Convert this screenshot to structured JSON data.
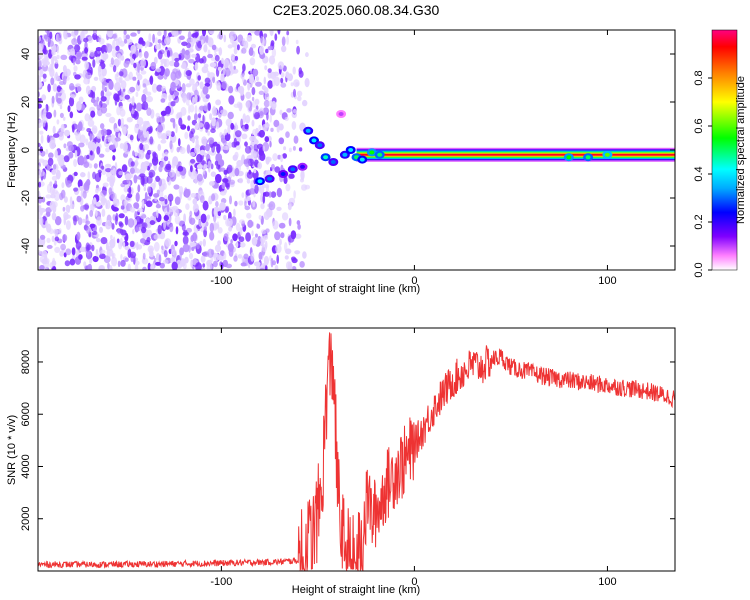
{
  "title": "C2E3.2025.060.08.34.G30",
  "colors": {
    "spectrogram_low": "#8a3dff",
    "spectrogram_faint": "#d9c2ff",
    "snr_line": "#ee3333",
    "colorbar": [
      "#ffffff",
      "#ff80ff",
      "#7f00ff",
      "#0000ff",
      "#00aaff",
      "#00ffff",
      "#00ff00",
      "#ffff00",
      "#ff8000",
      "#ff0000",
      "#ff0080"
    ]
  },
  "chart_data": [
    {
      "type": "heatmap",
      "name": "spectrogram",
      "xlabel": "Height of straight line (km)",
      "ylabel": "Frequency (Hz)",
      "xlim": [
        -195,
        135
      ],
      "ylim": [
        -50,
        50
      ],
      "x_ticks": [
        -100,
        0,
        100
      ],
      "x_tick_labels": [
        "-100",
        "0",
        "100"
      ],
      "y_ticks": [
        -40,
        -20,
        0,
        20,
        40
      ],
      "y_tick_labels": [
        "-40",
        "-20",
        "0",
        "20",
        "40"
      ],
      "colorbar": {
        "label": "Normalized spectral amplitude",
        "range": [
          0,
          1
        ],
        "ticks": [
          0,
          0.2,
          0.4,
          0.6,
          0.8
        ],
        "tick_labels": [
          "0.0",
          "0.2",
          "0.4",
          "0.6",
          "0.8"
        ]
      },
      "noise_region_x": [
        -195,
        -60
      ],
      "signal_band": {
        "center_hz": -2,
        "x_start": -30,
        "x_end": 135,
        "level": 0.95
      },
      "transition_points": [
        {
          "x": -80,
          "y": -13,
          "level": 0.4
        },
        {
          "x": -75,
          "y": -12,
          "level": 0.3
        },
        {
          "x": -68,
          "y": -10,
          "level": 0.25
        },
        {
          "x": -63,
          "y": -8,
          "level": 0.3
        },
        {
          "x": -58,
          "y": -7,
          "level": 0.2
        },
        {
          "x": -55,
          "y": 8,
          "level": 0.35
        },
        {
          "x": -52,
          "y": 4,
          "level": 0.4
        },
        {
          "x": -49,
          "y": 2,
          "level": 0.3
        },
        {
          "x": -46,
          "y": -3,
          "level": 0.45
        },
        {
          "x": -42,
          "y": -5,
          "level": 0.3
        },
        {
          "x": -38,
          "y": 15,
          "level": 0.1
        },
        {
          "x": -36,
          "y": -2,
          "level": 0.35
        },
        {
          "x": -33,
          "y": 0,
          "level": 0.4
        },
        {
          "x": -30,
          "y": -3,
          "level": 0.5
        },
        {
          "x": -27,
          "y": -4,
          "level": 0.4
        },
        {
          "x": -22,
          "y": -1,
          "level": 0.55
        },
        {
          "x": -18,
          "y": -2,
          "level": 0.5
        },
        {
          "x": 80,
          "y": -3,
          "level": 0.55
        },
        {
          "x": 90,
          "y": -3,
          "level": 0.5
        },
        {
          "x": 100,
          "y": -2,
          "level": 0.6
        }
      ]
    },
    {
      "type": "line",
      "name": "snr",
      "xlabel": "Height of straight line (km)",
      "ylabel": "SNR (10 * v/v)",
      "xlim": [
        -195,
        135
      ],
      "ylim": [
        0,
        9300
      ],
      "x_ticks": [
        -100,
        0,
        100
      ],
      "x_tick_labels": [
        "-100",
        "0",
        "100"
      ],
      "y_ticks": [
        2000,
        4000,
        6000,
        8000
      ],
      "y_tick_labels": [
        "2000",
        "4000",
        "6000",
        "8000"
      ],
      "series": [
        {
          "x": [
            -195,
            -150,
            -100,
            -70,
            -60,
            -52,
            -48,
            -45,
            -42,
            -40,
            -38,
            -35,
            -32,
            -30,
            -27,
            -24,
            -22,
            -18,
            -15,
            -10,
            -5,
            0,
            5,
            10,
            15,
            20,
            25,
            30,
            35,
            40,
            45,
            50,
            60,
            70,
            80,
            90,
            100,
            110,
            120,
            130,
            135
          ],
          "y": [
            250,
            250,
            300,
            350,
            400,
            1500,
            3000,
            7500,
            8000,
            3500,
            1500,
            800,
            400,
            300,
            1200,
            3000,
            2000,
            2500,
            3200,
            3800,
            4200,
            4800,
            5500,
            6200,
            6800,
            7300,
            7600,
            7900,
            7800,
            8100,
            8200,
            7800,
            7600,
            7400,
            7300,
            7200,
            7100,
            7000,
            6900,
            6700,
            6600
          ]
        }
      ]
    }
  ]
}
